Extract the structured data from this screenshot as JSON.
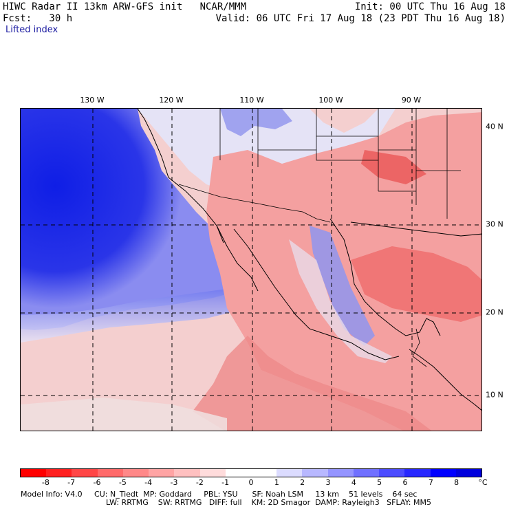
{
  "header": {
    "line1_left": "HIWC Radar II 13km ARW-GFS init   NCAR/MMM",
    "line1_right": "Init: 00 UTC Thu 16 Aug 18",
    "line2_left": "Fcst:   30 h",
    "line2_right": "Valid: 06 UTC Fri 17 Aug 18 (23 PDT Thu 16 Aug 18)",
    "field": "Lifted index"
  },
  "map": {
    "lon_labels": [
      "130 W",
      "120 W",
      "110 W",
      "100 W",
      "90 W"
    ],
    "lat_labels": [
      "40 N",
      "30 N",
      "20 N",
      "10 N"
    ]
  },
  "colorbar": {
    "colors": [
      "#ff0000",
      "#ff2020",
      "#ff4646",
      "#ff6a6a",
      "#ff8888",
      "#ffa4a4",
      "#ffc0c0",
      "#ffdcdc",
      "#ffffff",
      "#ffffff",
      "#dcdcff",
      "#b8b8ff",
      "#9494ff",
      "#7070ff",
      "#4c4cff",
      "#2828ff",
      "#0000ff",
      "#0000dd"
    ],
    "labels": [
      "-8",
      "-7",
      "-6",
      "-5",
      "-4",
      "-3",
      "-2",
      "-1",
      "0",
      "1",
      "2",
      "3",
      "4",
      "5",
      "6",
      "7",
      "8"
    ],
    "unit": "°C"
  },
  "footer": {
    "line1": "Model Info: V4.0     CU: N_Tiedt  MP: Goddard     PBL: YSU      SF: Noah LSM     13 km    51 levels    64 sec",
    "line2": "LW: RRTMG    SW: RRTMG   DIFF: full    KM: 2D Smagor  DAMP: Rayleigh3   SFLAY: MM5"
  }
}
